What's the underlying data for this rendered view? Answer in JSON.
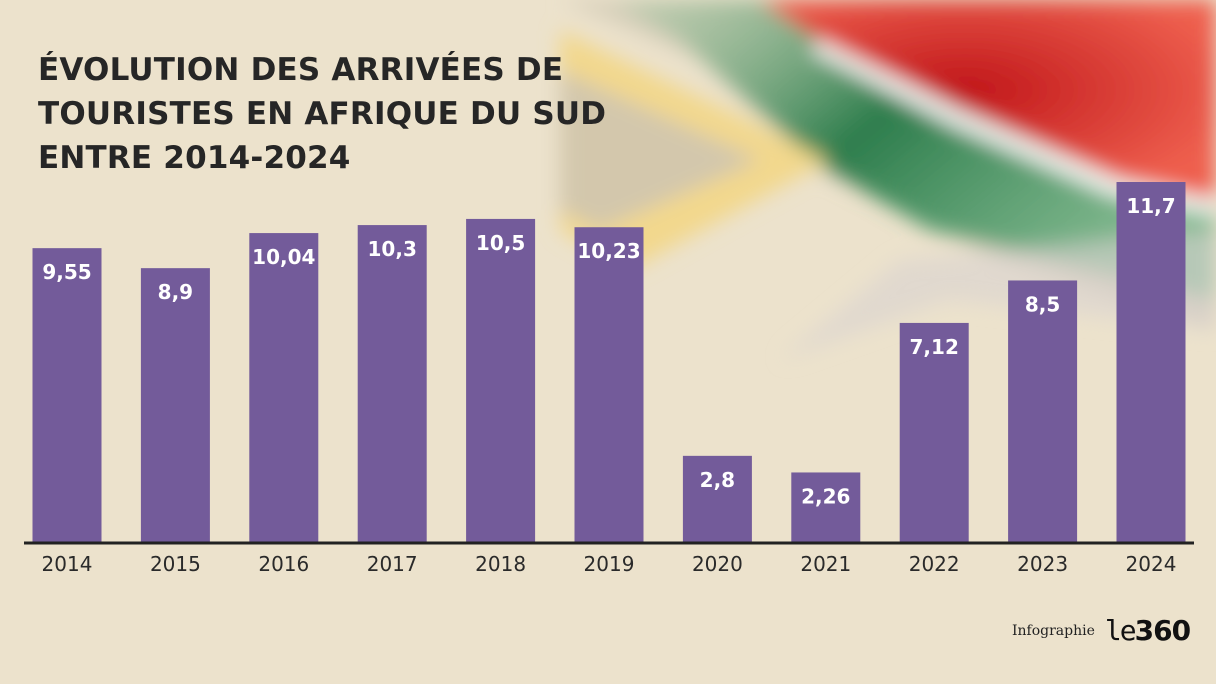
{
  "title_lines": [
    "ÉVOLUTION DES ARRIVÉES DE",
    "TOURISTES EN AFRIQUE DU SUD",
    "ENTRE 2014-2024"
  ],
  "credit": {
    "label": "Infographie",
    "logo_prefix": "le",
    "logo_suffix": "360"
  },
  "colors": {
    "bar": "#735b9a",
    "axis": "#222222",
    "text": "#262626"
  },
  "chart_data": {
    "type": "bar",
    "title": "ÉVOLUTION DES ARRIVÉES DE TOURISTES EN AFRIQUE DU SUD ENTRE 2014-2024",
    "xlabel": "",
    "ylabel": "",
    "categories": [
      "2014",
      "2015",
      "2016",
      "2017",
      "2018",
      "2019",
      "2020",
      "2021",
      "2022",
      "2023",
      "2024"
    ],
    "values": [
      9.55,
      8.9,
      10.04,
      10.3,
      10.5,
      10.23,
      2.8,
      2.26,
      7.12,
      8.5,
      11.7
    ],
    "value_labels": [
      "9,55",
      "8,9",
      "10,04",
      "10,3",
      "10,5",
      "10,23",
      "2,8",
      "2,26",
      "7,12",
      "8,5",
      "11,7"
    ],
    "ylim": [
      0,
      11.7
    ],
    "grid": false,
    "legend": "none"
  }
}
